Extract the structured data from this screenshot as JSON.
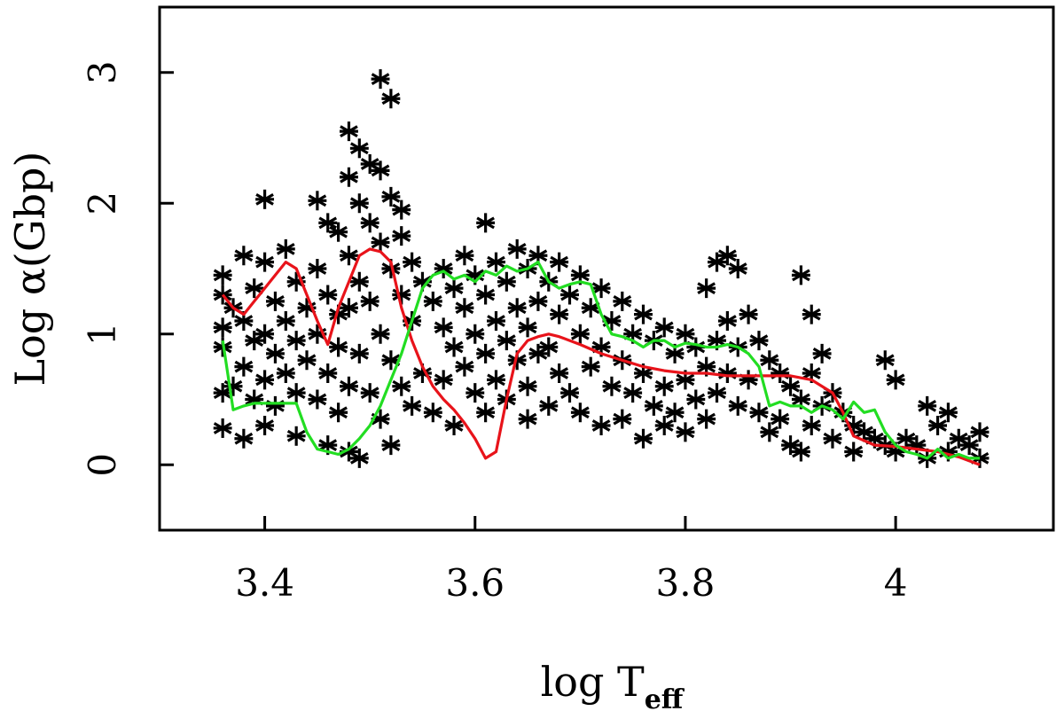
{
  "chart_data": {
    "type": "scatter",
    "title": "",
    "xlabel": "log T",
    "xlabel_subscript": "eff",
    "ylabel": "Log α(Gbp)",
    "xlim": [
      3.3,
      4.15
    ],
    "ylim": [
      -0.5,
      3.5
    ],
    "x_ticks": [
      3.4,
      3.6,
      3.8,
      4.0
    ],
    "x_tick_labels": [
      "3.4",
      "3.6",
      "3.8",
      "4"
    ],
    "y_ticks": [
      0,
      1,
      2,
      3
    ],
    "y_tick_labels": [
      "0",
      "1",
      "2",
      "3"
    ],
    "grid": false,
    "legend": "none",
    "marker": "asterisk",
    "scatter_color": "#000000",
    "scatter_points": [
      [
        3.36,
        1.45
      ],
      [
        3.36,
        1.3
      ],
      [
        3.36,
        1.05
      ],
      [
        3.36,
        0.9
      ],
      [
        3.36,
        0.55
      ],
      [
        3.36,
        0.28
      ],
      [
        3.37,
        1.2
      ],
      [
        3.37,
        0.6
      ],
      [
        3.38,
        1.6
      ],
      [
        3.38,
        1.1
      ],
      [
        3.38,
        0.75
      ],
      [
        3.38,
        0.2
      ],
      [
        3.39,
        1.35
      ],
      [
        3.39,
        0.95
      ],
      [
        3.39,
        0.5
      ],
      [
        3.4,
        2.03
      ],
      [
        3.4,
        1.55
      ],
      [
        3.4,
        1.0
      ],
      [
        3.4,
        0.65
      ],
      [
        3.4,
        0.3
      ],
      [
        3.41,
        1.25
      ],
      [
        3.41,
        0.85
      ],
      [
        3.41,
        0.45
      ],
      [
        3.42,
        1.65
      ],
      [
        3.42,
        1.1
      ],
      [
        3.42,
        0.7
      ],
      [
        3.43,
        1.4
      ],
      [
        3.43,
        0.95
      ],
      [
        3.43,
        0.55
      ],
      [
        3.43,
        0.22
      ],
      [
        3.44,
        1.2
      ],
      [
        3.44,
        0.8
      ],
      [
        3.45,
        2.02
      ],
      [
        3.45,
        1.5
      ],
      [
        3.45,
        1.0
      ],
      [
        3.45,
        0.5
      ],
      [
        3.46,
        1.85
      ],
      [
        3.46,
        1.3
      ],
      [
        3.46,
        0.7
      ],
      [
        3.46,
        0.15
      ],
      [
        3.47,
        1.78
      ],
      [
        3.47,
        1.15
      ],
      [
        3.47,
        0.9
      ],
      [
        3.47,
        0.4
      ],
      [
        3.48,
        2.55
      ],
      [
        3.48,
        2.2
      ],
      [
        3.48,
        1.6
      ],
      [
        3.48,
        1.2
      ],
      [
        3.48,
        0.6
      ],
      [
        3.48,
        0.1
      ],
      [
        3.49,
        2.42
      ],
      [
        3.49,
        2.0
      ],
      [
        3.49,
        1.4
      ],
      [
        3.49,
        0.85
      ],
      [
        3.49,
        0.05
      ],
      [
        3.5,
        2.3
      ],
      [
        3.5,
        1.85
      ],
      [
        3.5,
        1.25
      ],
      [
        3.5,
        0.55
      ],
      [
        3.51,
        2.95
      ],
      [
        3.51,
        2.25
      ],
      [
        3.51,
        1.7
      ],
      [
        3.51,
        1.0
      ],
      [
        3.51,
        0.35
      ],
      [
        3.52,
        2.8
      ],
      [
        3.52,
        2.05
      ],
      [
        3.52,
        1.5
      ],
      [
        3.52,
        0.8
      ],
      [
        3.52,
        0.15
      ],
      [
        3.53,
        1.95
      ],
      [
        3.53,
        1.75
      ],
      [
        3.53,
        1.3
      ],
      [
        3.53,
        0.6
      ],
      [
        3.54,
        1.55
      ],
      [
        3.54,
        1.1
      ],
      [
        3.54,
        0.45
      ],
      [
        3.55,
        1.4
      ],
      [
        3.55,
        0.7
      ],
      [
        3.56,
        1.25
      ],
      [
        3.56,
        0.4
      ],
      [
        3.57,
        1.5
      ],
      [
        3.57,
        1.05
      ],
      [
        3.57,
        0.65
      ],
      [
        3.58,
        1.35
      ],
      [
        3.58,
        0.9
      ],
      [
        3.58,
        0.3
      ],
      [
        3.59,
        1.6
      ],
      [
        3.59,
        1.2
      ],
      [
        3.59,
        0.75
      ],
      [
        3.6,
        1.45
      ],
      [
        3.6,
        1.0
      ],
      [
        3.6,
        0.55
      ],
      [
        3.61,
        1.85
      ],
      [
        3.61,
        1.3
      ],
      [
        3.61,
        0.85
      ],
      [
        3.61,
        0.4
      ],
      [
        3.62,
        1.55
      ],
      [
        3.62,
        1.1
      ],
      [
        3.62,
        0.65
      ],
      [
        3.63,
        1.4
      ],
      [
        3.63,
        0.95
      ],
      [
        3.63,
        0.5
      ],
      [
        3.64,
        1.65
      ],
      [
        3.64,
        1.2
      ],
      [
        3.64,
        0.8
      ],
      [
        3.65,
        1.5
      ],
      [
        3.65,
        1.05
      ],
      [
        3.65,
        0.6
      ],
      [
        3.65,
        0.35
      ],
      [
        3.66,
        1.6
      ],
      [
        3.66,
        1.25
      ],
      [
        3.66,
        0.85
      ],
      [
        3.67,
        1.4
      ],
      [
        3.67,
        0.9
      ],
      [
        3.67,
        0.45
      ],
      [
        3.68,
        1.55
      ],
      [
        3.68,
        1.15
      ],
      [
        3.68,
        0.7
      ],
      [
        3.69,
        1.3
      ],
      [
        3.69,
        0.55
      ],
      [
        3.7,
        1.45
      ],
      [
        3.7,
        1.0
      ],
      [
        3.7,
        0.4
      ],
      [
        3.71,
        1.2
      ],
      [
        3.71,
        0.75
      ],
      [
        3.72,
        1.35
      ],
      [
        3.72,
        0.9
      ],
      [
        3.72,
        0.3
      ],
      [
        3.73,
        1.1
      ],
      [
        3.73,
        0.6
      ],
      [
        3.74,
        1.25
      ],
      [
        3.74,
        0.8
      ],
      [
        3.74,
        0.35
      ],
      [
        3.75,
        1.0
      ],
      [
        3.75,
        0.55
      ],
      [
        3.76,
        1.15
      ],
      [
        3.76,
        0.7
      ],
      [
        3.76,
        0.2
      ],
      [
        3.77,
        0.95
      ],
      [
        3.77,
        0.45
      ],
      [
        3.78,
        1.05
      ],
      [
        3.78,
        0.6
      ],
      [
        3.78,
        0.3
      ],
      [
        3.79,
        0.85
      ],
      [
        3.79,
        0.4
      ],
      [
        3.8,
        1.0
      ],
      [
        3.8,
        0.65
      ],
      [
        3.8,
        0.25
      ],
      [
        3.81,
        0.9
      ],
      [
        3.81,
        0.5
      ],
      [
        3.82,
        1.35
      ],
      [
        3.82,
        0.75
      ],
      [
        3.82,
        0.35
      ],
      [
        3.83,
        1.55
      ],
      [
        3.83,
        0.95
      ],
      [
        3.83,
        0.55
      ],
      [
        3.84,
        1.6
      ],
      [
        3.84,
        1.1
      ],
      [
        3.84,
        0.7
      ],
      [
        3.85,
        1.5
      ],
      [
        3.85,
        0.9
      ],
      [
        3.85,
        0.45
      ],
      [
        3.86,
        1.15
      ],
      [
        3.86,
        0.65
      ],
      [
        3.87,
        0.95
      ],
      [
        3.87,
        0.4
      ],
      [
        3.88,
        0.8
      ],
      [
        3.88,
        0.25
      ],
      [
        3.89,
        0.7
      ],
      [
        3.89,
        0.35
      ],
      [
        3.9,
        0.6
      ],
      [
        3.9,
        0.15
      ],
      [
        3.91,
        1.45
      ],
      [
        3.91,
        0.5
      ],
      [
        3.91,
        0.1
      ],
      [
        3.92,
        1.15
      ],
      [
        3.92,
        0.7
      ],
      [
        3.92,
        0.3
      ],
      [
        3.93,
        0.85
      ],
      [
        3.93,
        0.45
      ],
      [
        3.94,
        0.55
      ],
      [
        3.94,
        0.2
      ],
      [
        3.95,
        0.4
      ],
      [
        3.96,
        0.3
      ],
      [
        3.96,
        0.1
      ],
      [
        3.97,
        0.25
      ],
      [
        3.98,
        0.2
      ],
      [
        3.99,
        0.8
      ],
      [
        3.99,
        0.15
      ],
      [
        4.0,
        0.65
      ],
      [
        4.0,
        0.1
      ],
      [
        4.01,
        0.2
      ],
      [
        4.02,
        0.15
      ],
      [
        4.03,
        0.45
      ],
      [
        4.03,
        0.05
      ],
      [
        4.04,
        0.3
      ],
      [
        4.05,
        0.4
      ],
      [
        4.05,
        0.1
      ],
      [
        4.06,
        0.2
      ],
      [
        4.07,
        0.15
      ],
      [
        4.08,
        0.25
      ],
      [
        4.08,
        0.05
      ]
    ],
    "series": [
      {
        "color": "#e8131a",
        "x": [
          3.36,
          3.37,
          3.38,
          3.39,
          3.4,
          3.41,
          3.42,
          3.43,
          3.44,
          3.45,
          3.46,
          3.47,
          3.48,
          3.49,
          3.5,
          3.51,
          3.52,
          3.53,
          3.54,
          3.55,
          3.56,
          3.57,
          3.58,
          3.59,
          3.6,
          3.61,
          3.62,
          3.63,
          3.64,
          3.65,
          3.66,
          3.67,
          3.68,
          3.7,
          3.72,
          3.74,
          3.76,
          3.78,
          3.8,
          3.82,
          3.84,
          3.86,
          3.88,
          3.9,
          3.92,
          3.94,
          3.95,
          3.96,
          3.98,
          4.0,
          4.02,
          4.04,
          4.06,
          4.08
        ],
        "y": [
          1.3,
          1.2,
          1.15,
          1.25,
          1.35,
          1.45,
          1.55,
          1.5,
          1.3,
          1.1,
          0.92,
          1.2,
          1.4,
          1.6,
          1.65,
          1.63,
          1.55,
          1.2,
          0.95,
          0.75,
          0.6,
          0.5,
          0.42,
          0.32,
          0.2,
          0.05,
          0.1,
          0.5,
          0.85,
          0.95,
          0.98,
          1.0,
          0.98,
          0.92,
          0.85,
          0.8,
          0.75,
          0.72,
          0.7,
          0.7,
          0.68,
          0.68,
          0.68,
          0.68,
          0.65,
          0.55,
          0.4,
          0.22,
          0.15,
          0.14,
          0.12,
          0.1,
          0.06,
          0.0
        ]
      },
      {
        "color": "#22dd22",
        "x": [
          3.36,
          3.37,
          3.38,
          3.39,
          3.4,
          3.41,
          3.42,
          3.43,
          3.44,
          3.45,
          3.46,
          3.47,
          3.48,
          3.49,
          3.5,
          3.51,
          3.52,
          3.53,
          3.54,
          3.55,
          3.56,
          3.57,
          3.58,
          3.59,
          3.6,
          3.61,
          3.62,
          3.63,
          3.64,
          3.65,
          3.66,
          3.67,
          3.68,
          3.69,
          3.7,
          3.71,
          3.72,
          3.73,
          3.74,
          3.75,
          3.76,
          3.77,
          3.78,
          3.79,
          3.8,
          3.81,
          3.82,
          3.83,
          3.84,
          3.85,
          3.86,
          3.87,
          3.88,
          3.89,
          3.9,
          3.91,
          3.92,
          3.93,
          3.94,
          3.95,
          3.96,
          3.97,
          3.98,
          3.99,
          4.0,
          4.01,
          4.02,
          4.03,
          4.04,
          4.05,
          4.06,
          4.07,
          4.08
        ],
        "y": [
          0.95,
          0.42,
          0.45,
          0.47,
          0.47,
          0.47,
          0.47,
          0.47,
          0.25,
          0.12,
          0.1,
          0.08,
          0.12,
          0.2,
          0.3,
          0.45,
          0.65,
          0.85,
          1.1,
          1.35,
          1.45,
          1.48,
          1.42,
          1.45,
          1.4,
          1.48,
          1.45,
          1.52,
          1.48,
          1.5,
          1.55,
          1.4,
          1.35,
          1.38,
          1.4,
          1.38,
          1.15,
          1.0,
          0.98,
          0.95,
          0.9,
          0.95,
          0.95,
          0.9,
          0.93,
          0.92,
          0.9,
          0.9,
          0.92,
          0.9,
          0.85,
          0.75,
          0.45,
          0.48,
          0.45,
          0.45,
          0.4,
          0.45,
          0.42,
          0.35,
          0.48,
          0.4,
          0.42,
          0.25,
          0.15,
          0.1,
          0.08,
          0.05,
          0.12,
          0.05,
          0.08,
          0.05,
          0.05
        ]
      }
    ]
  }
}
